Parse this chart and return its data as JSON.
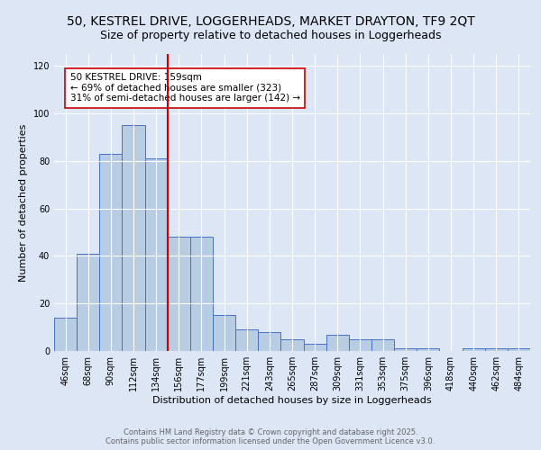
{
  "title": "50, KESTREL DRIVE, LOGGERHEADS, MARKET DRAYTON, TF9 2QT",
  "subtitle": "Size of property relative to detached houses in Loggerheads",
  "xlabel": "Distribution of detached houses by size in Loggerheads",
  "ylabel": "Number of detached properties",
  "categories": [
    "46sqm",
    "68sqm",
    "90sqm",
    "112sqm",
    "134sqm",
    "156sqm",
    "177sqm",
    "199sqm",
    "221sqm",
    "243sqm",
    "265sqm",
    "287sqm",
    "309sqm",
    "331sqm",
    "353sqm",
    "375sqm",
    "396sqm",
    "418sqm",
    "440sqm",
    "462sqm",
    "484sqm"
  ],
  "values": [
    14,
    41,
    83,
    95,
    81,
    48,
    48,
    15,
    9,
    8,
    5,
    3,
    7,
    5,
    5,
    1,
    1,
    0,
    1,
    1,
    1
  ],
  "bar_color": "#b8cce4",
  "bar_edge_color": "#4472c4",
  "vline_x_index": 5,
  "vline_color": "#cc0000",
  "annotation_text": "50 KESTREL DRIVE: 159sqm\n← 69% of detached houses are smaller (323)\n31% of semi-detached houses are larger (142) →",
  "annotation_box_color": "#ffffff",
  "annotation_box_edge": "#cc0000",
  "ylim": [
    0,
    125
  ],
  "yticks": [
    0,
    20,
    40,
    60,
    80,
    100,
    120
  ],
  "background_color": "#dce6f5",
  "grid_color": "#ffffff",
  "footer_text": "Contains HM Land Registry data © Crown copyright and database right 2025.\nContains public sector information licensed under the Open Government Licence v3.0.",
  "title_fontsize": 10,
  "subtitle_fontsize": 9,
  "axis_label_fontsize": 8,
  "tick_fontsize": 7,
  "annotation_fontsize": 7.5,
  "footer_fontsize": 6
}
